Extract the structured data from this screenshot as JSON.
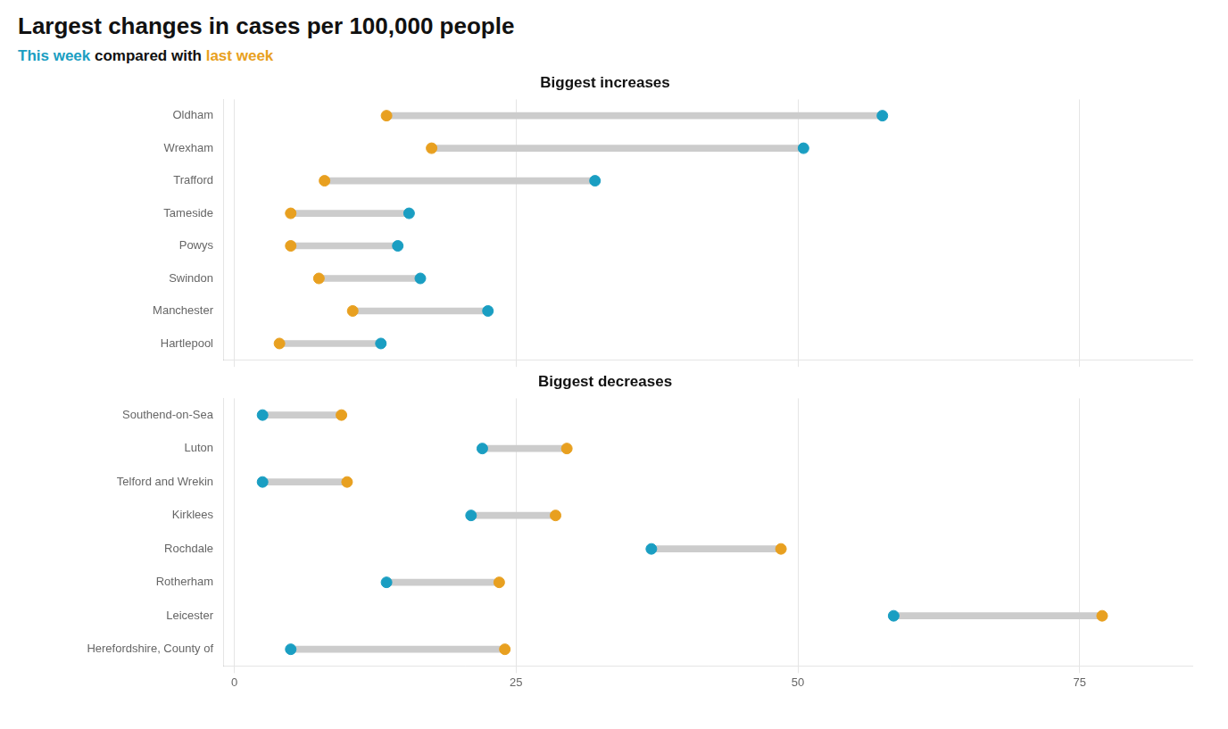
{
  "title": "Largest changes in cases per 100,000 people",
  "subtitle": "This week compared with last week",
  "chart_data": [
    {
      "type": "dumbbell",
      "title": "Biggest increases",
      "categories": [
        "Oldham",
        "Wrexham",
        "Trafford",
        "Tameside",
        "Powys",
        "Swindon",
        "Manchester",
        "Hartlepool"
      ],
      "series": [
        {
          "name": "This week",
          "color": "#1a9ec2",
          "marker": "circle",
          "values": [
            57.5,
            50.5,
            32.0,
            15.5,
            14.5,
            16.5,
            22.5,
            13.0
          ]
        },
        {
          "name": "last week",
          "color": "#e8a020",
          "marker": "circle",
          "values": [
            13.5,
            17.5,
            8.0,
            5.0,
            5.0,
            7.5,
            10.5,
            4.0
          ]
        }
      ],
      "color": "#cccccc",
      "xlim": [
        -1,
        85
      ],
      "xticks": [
        0,
        25,
        50,
        75
      ],
      "grid": true,
      "tick_labels": "y"
    },
    {
      "type": "dumbbell",
      "title": "Biggest decreases",
      "categories": [
        "Southend-on-Sea",
        "Luton",
        "Telford and Wrekin",
        "Kirklees",
        "Rochdale",
        "Rotherham",
        "Leicester",
        "Herefordshire, County of"
      ],
      "series": [
        {
          "name": "This week",
          "color": "#1a9ec2",
          "marker": "circle",
          "values": [
            2.5,
            22.0,
            2.5,
            21.0,
            37.0,
            13.5,
            58.5,
            5.0
          ]
        },
        {
          "name": "last week",
          "color": "#e8a020",
          "marker": "circle",
          "values": [
            9.5,
            29.5,
            10.0,
            28.5,
            48.5,
            23.5,
            77.0,
            24.0
          ]
        }
      ],
      "color": "#cccccc",
      "xlim": [
        -1,
        85
      ],
      "xticks": [
        0,
        25,
        50,
        75
      ],
      "grid": true
    }
  ]
}
